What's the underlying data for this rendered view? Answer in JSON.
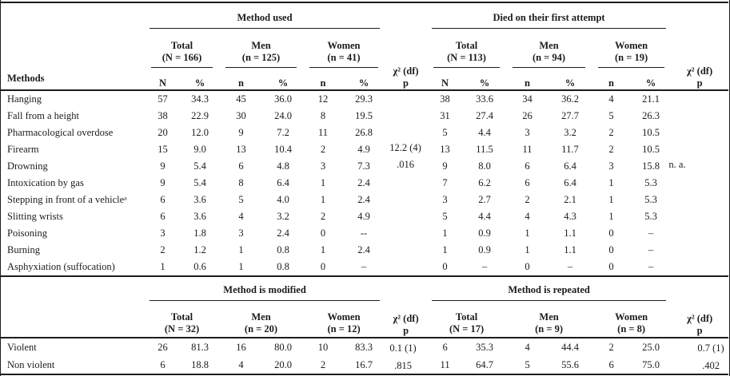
{
  "colors": {
    "ink": "#1c1c1c",
    "paper": "#ffffff"
  },
  "table1": {
    "stub_header": "Methods",
    "section_headers": [
      {
        "title": "Method used"
      },
      {
        "title": "Died on their first attempt"
      }
    ],
    "groups_left": [
      {
        "name": "Total",
        "n": "(N = 166)",
        "col1": "N",
        "col2": "%"
      },
      {
        "name": "Men",
        "n": "(n = 125)",
        "col1": "n",
        "col2": "%"
      },
      {
        "name": "Women",
        "n": "(n = 41)",
        "col1": "n",
        "col2": "%"
      }
    ],
    "groups_right": [
      {
        "name": "Total",
        "n": "(N = 113)",
        "col1": "N",
        "col2": "%"
      },
      {
        "name": "Men",
        "n": "(n = 94)",
        "col1": "n",
        "col2": "%"
      },
      {
        "name": "Women",
        "n": "(n = 19)",
        "col1": "n",
        "col2": "%"
      }
    ],
    "chi_header": {
      "line1": "χ² (df)",
      "line2": "p"
    },
    "chi_left": {
      "line1": "12.2 (4)",
      "line2": ".016"
    },
    "chi_right": {
      "line1": "n. a.",
      "line2": ""
    },
    "rows": [
      [
        "Hanging",
        "57",
        "34.3",
        "45",
        "36.0",
        "12",
        "29.3",
        "38",
        "33.6",
        "34",
        "36.2",
        "4",
        "21.1"
      ],
      [
        "Fall from a height",
        "38",
        "22.9",
        "30",
        "24.0",
        "8",
        "19.5",
        "31",
        "27.4",
        "26",
        "27.7",
        "5",
        "26.3"
      ],
      [
        "Pharmacological overdose",
        "20",
        "12.0",
        "9",
        "7.2",
        "11",
        "26.8",
        "5",
        "4.4",
        "3",
        "3.2",
        "2",
        "10.5"
      ],
      [
        "Firearm",
        "15",
        "9.0",
        "13",
        "10.4",
        "2",
        "4.9",
        "13",
        "11.5",
        "11",
        "11.7",
        "2",
        "10.5"
      ],
      [
        "Drowning",
        "9",
        "5.4",
        "6",
        "4.8",
        "3",
        "7.3",
        "9",
        "8.0",
        "6",
        "6.4",
        "3",
        "15.8"
      ],
      [
        "Intoxication by gas",
        "9",
        "5.4",
        "8",
        "6.4",
        "1",
        "2.4",
        "7",
        "6.2",
        "6",
        "6.4",
        "1",
        "5.3"
      ],
      [
        "Stepping in front of a vehicleᵃ",
        "6",
        "3.6",
        "5",
        "4.0",
        "1",
        "2.4",
        "3",
        "2.7",
        "2",
        "2.1",
        "1",
        "5.3"
      ],
      [
        "Slitting wrists",
        "6",
        "3.6",
        "4",
        "3.2",
        "2",
        "4.9",
        "5",
        "4.4",
        "4",
        "4.3",
        "1",
        "5.3"
      ],
      [
        "Poisoning",
        "3",
        "1.8",
        "3",
        "2.4",
        "0",
        "--",
        "1",
        "0.9",
        "1",
        "1.1",
        "0",
        "–"
      ],
      [
        "Burning",
        "2",
        "1.2",
        "1",
        "0.8",
        "1",
        "2.4",
        "1",
        "0.9",
        "1",
        "1.1",
        "0",
        "–"
      ],
      [
        "Asphyxiation (suffocation)",
        "1",
        "0.6",
        "1",
        "0.8",
        "0",
        "–",
        "0",
        "–",
        "0",
        "–",
        "0",
        "–"
      ]
    ]
  },
  "table2": {
    "section_headers": [
      {
        "title": "Method is modified"
      },
      {
        "title": "Method is repeated"
      }
    ],
    "groups_left": [
      {
        "name": "Total",
        "n": "(N = 32)"
      },
      {
        "name": "Men",
        "n": "(n = 20)"
      },
      {
        "name": "Women",
        "n": "(n = 12)"
      }
    ],
    "groups_right": [
      {
        "name": "Total",
        "n": "(N = 17)"
      },
      {
        "name": "Men",
        "n": "(n = 9)"
      },
      {
        "name": "Women",
        "n": "(n = 8)"
      }
    ],
    "chi_header": {
      "line1": "χ² (df)",
      "line2": "p"
    },
    "chi_left": {
      "line1": "0.1 (1)",
      "line2": ".815"
    },
    "chi_right": {
      "line1": "0.7 (1)",
      "line2": ".402"
    },
    "rows": [
      [
        "Violent",
        "26",
        "81.3",
        "16",
        "80.0",
        "10",
        "83.3",
        "6",
        "35.3",
        "4",
        "44.4",
        "2",
        "25.0"
      ],
      [
        "Non violent",
        "6",
        "18.8",
        "4",
        "20.0",
        "2",
        "16.7",
        "11",
        "64.7",
        "5",
        "55.6",
        "6",
        "75.0"
      ]
    ]
  }
}
